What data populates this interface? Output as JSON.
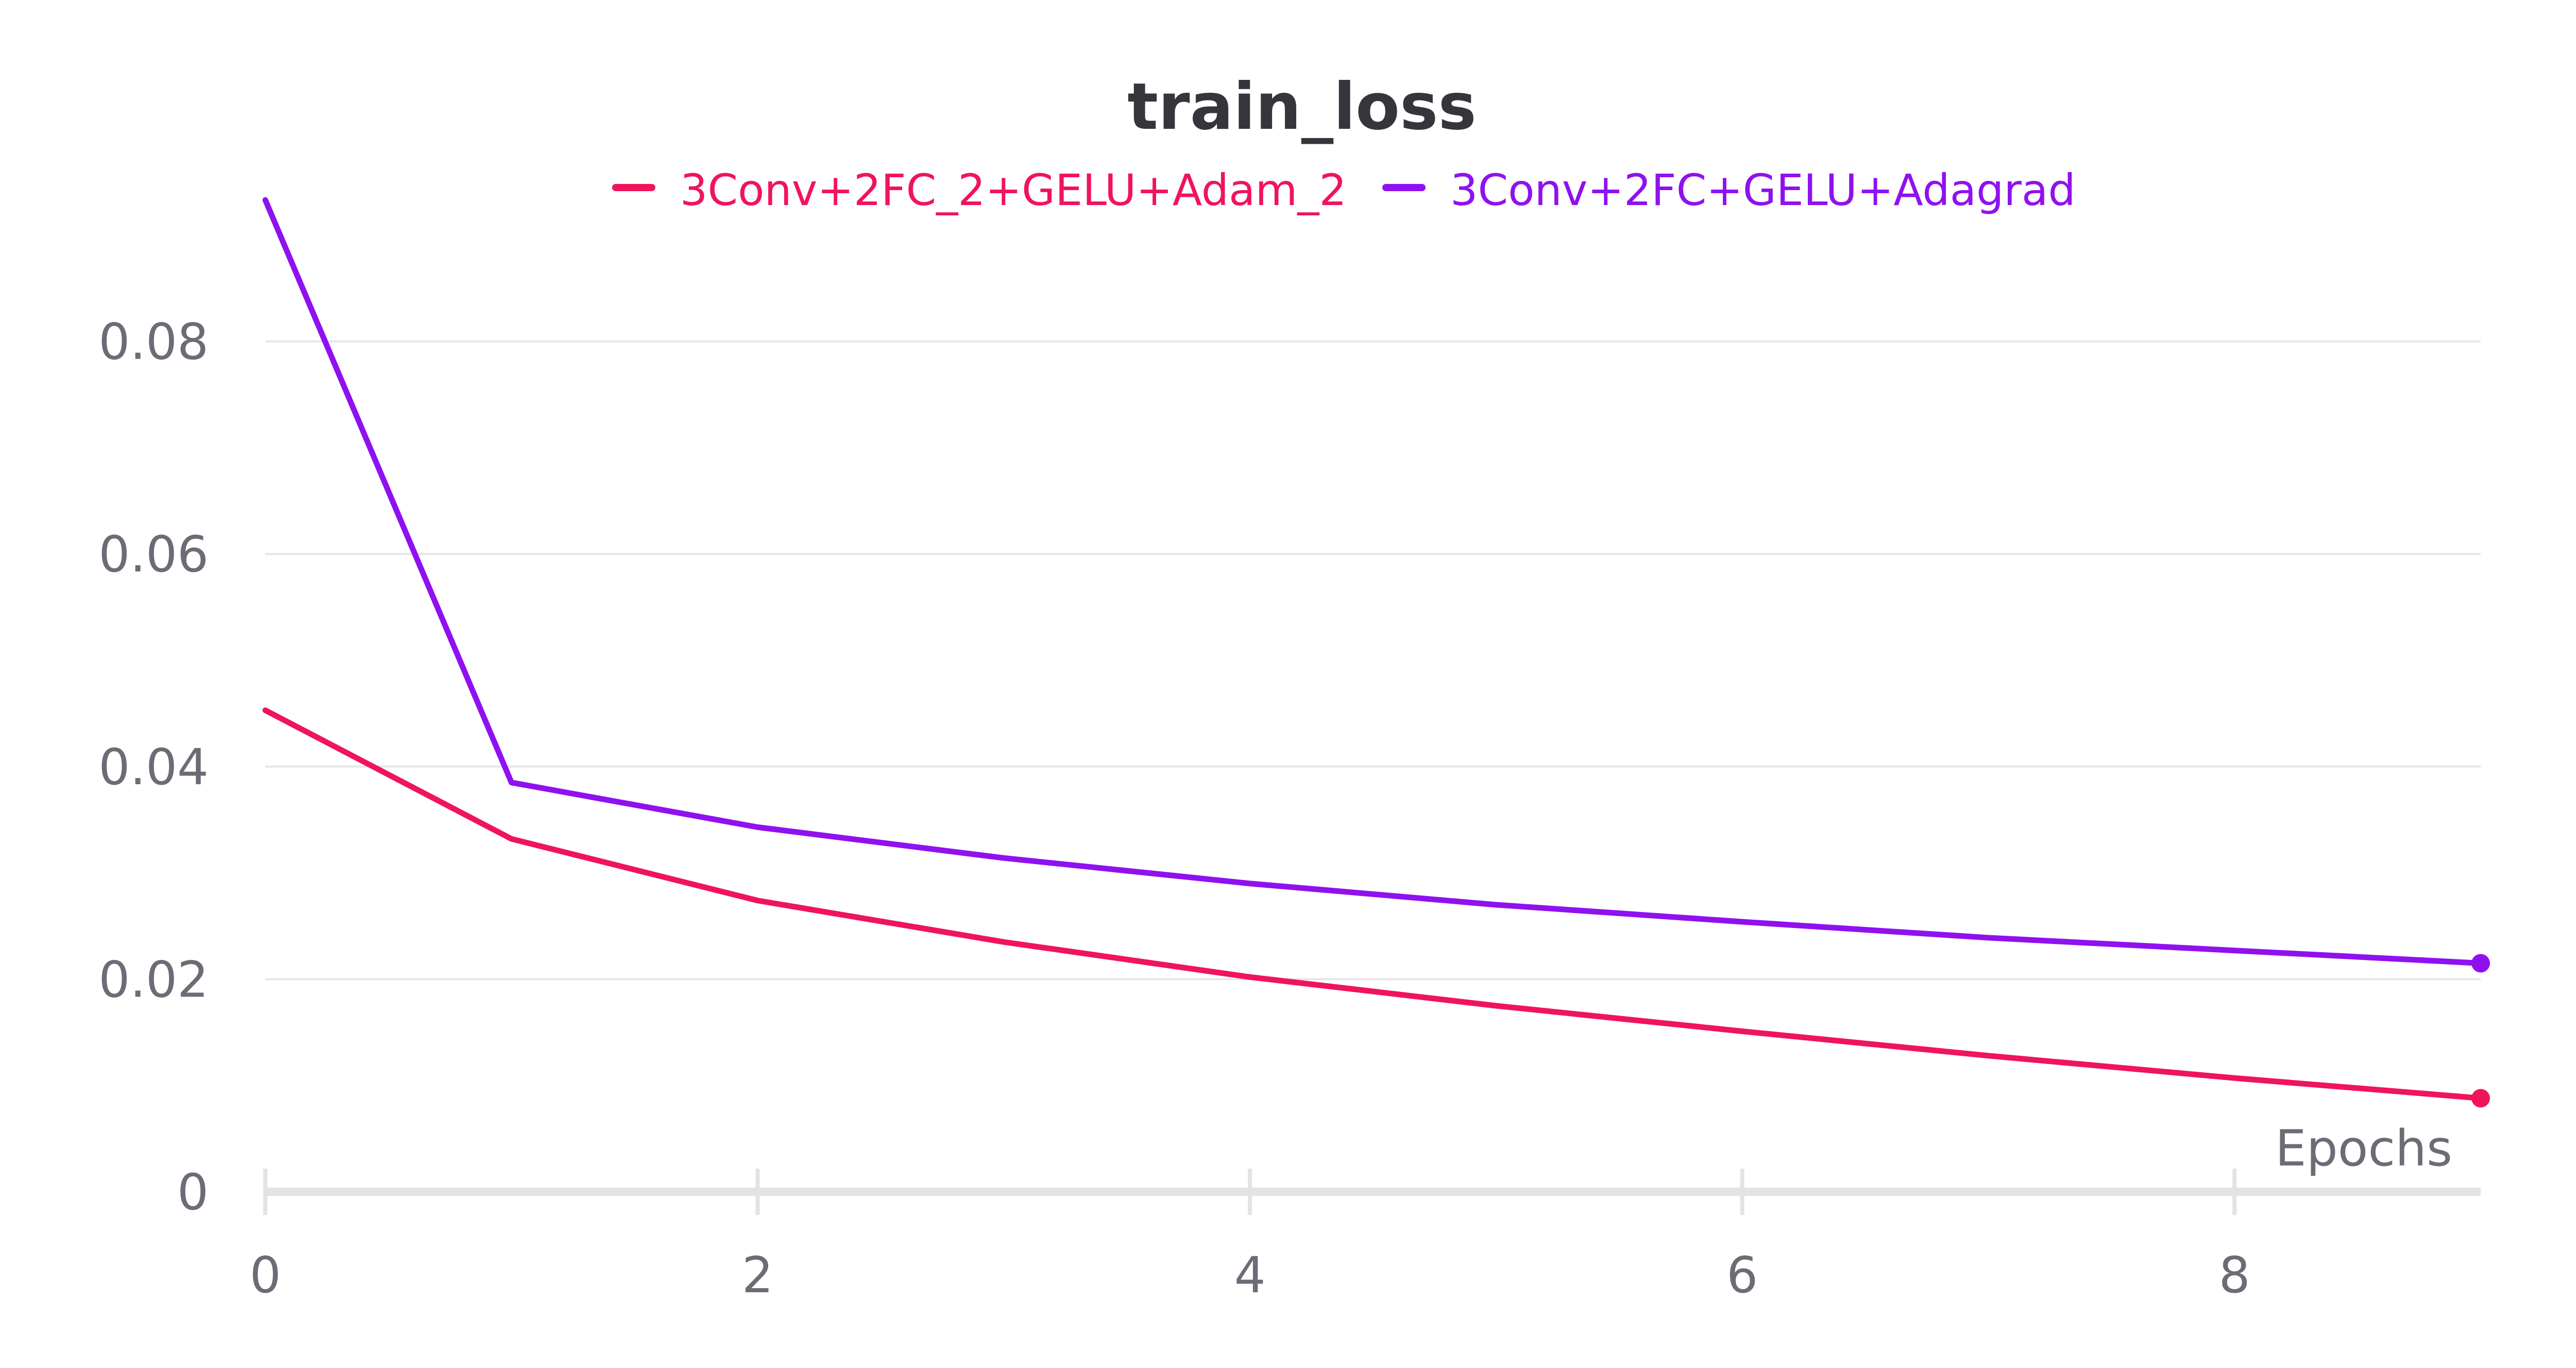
{
  "chart_data": {
    "type": "line",
    "title": "train_loss",
    "xlabel": "Epochs",
    "ylabel": "",
    "x": [
      0,
      1,
      2,
      3,
      4,
      5,
      6,
      7,
      8,
      9
    ],
    "x_ticks": [
      "0",
      "2",
      "4",
      "6",
      "8"
    ],
    "y_ticks": [
      "0",
      "0.02",
      "0.04",
      "0.06",
      "0.08"
    ],
    "xlim": [
      0,
      9
    ],
    "ylim": [
      0,
      0.1
    ],
    "grid": true,
    "legend_position": "top-center",
    "series": [
      {
        "name": "3Conv+2FC_2+GELU+Adam_2",
        "color": "#f0145a",
        "values": [
          0.0453,
          0.0332,
          0.0274,
          0.0235,
          0.0202,
          0.0175,
          0.0151,
          0.0128,
          0.0107,
          0.0088
        ]
      },
      {
        "name": "3Conv+2FC+GELU+Adagrad",
        "color": "#8f11ef",
        "values": [
          0.0933,
          0.0385,
          0.0343,
          0.0314,
          0.029,
          0.027,
          0.0254,
          0.0239,
          0.0227,
          0.0215
        ]
      }
    ]
  }
}
